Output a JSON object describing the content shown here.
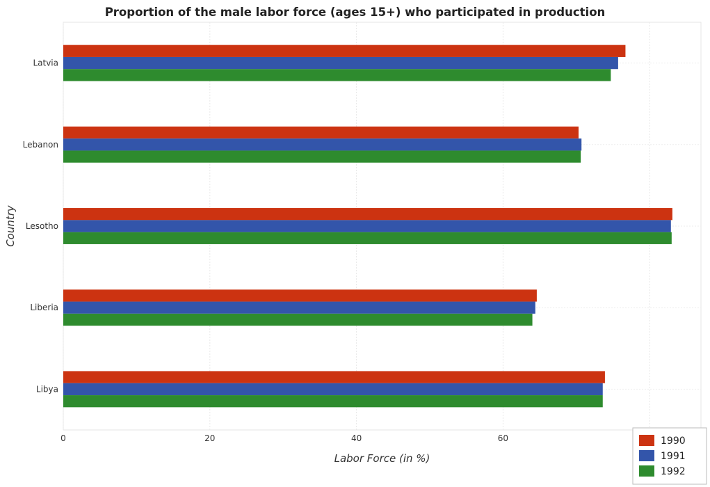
{
  "title": "Proportion of the male labor force (ages 15+) who participated in production",
  "chart_data": {
    "type": "bar",
    "orientation": "horizontal",
    "title": "Proportion of the male labor force (ages 15+) who participated in production",
    "xlabel": "Labor Force (in %)",
    "ylabel": "Country",
    "xlim": [
      0,
      87
    ],
    "xticks": [
      0,
      20,
      40,
      60,
      80
    ],
    "categories": [
      "Latvia",
      "Lebanon",
      "Lesotho",
      "Liberia",
      "Libya"
    ],
    "series": [
      {
        "name": "1990",
        "color": "#cc3311",
        "values": [
          76.7,
          70.3,
          83.1,
          64.6,
          73.9
        ]
      },
      {
        "name": "1991",
        "color": "#3355aa",
        "values": [
          75.7,
          70.7,
          82.9,
          64.4,
          73.6
        ]
      },
      {
        "name": "1992",
        "color": "#2e8b2e",
        "values": [
          74.7,
          70.6,
          83.0,
          64.0,
          73.6
        ]
      }
    ],
    "grid": true,
    "legend_position": "bottom-right"
  }
}
